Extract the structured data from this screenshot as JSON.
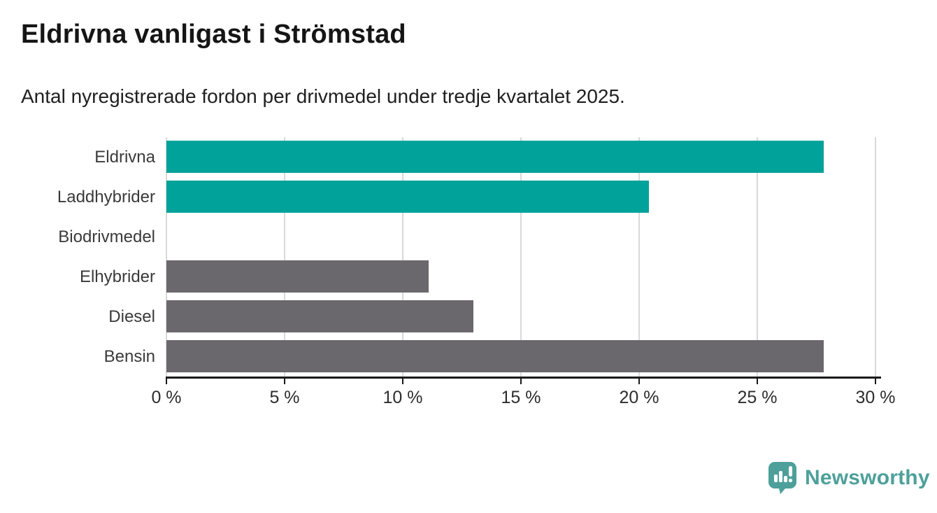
{
  "header": {
    "title": "Eldrivna vanligast i Strömstad",
    "subtitle": "Antal nyregistrerade fordon per drivmedel under tredje kvartalet 2025."
  },
  "chart_data": {
    "type": "bar",
    "orientation": "horizontal",
    "title": "Eldrivna vanligast i Strömstad",
    "subtitle": "Antal nyregistrerade fordon per drivmedel under tredje kvartalet 2025.",
    "categories": [
      "Eldrivna",
      "Laddhybrider",
      "Biodrivmedel",
      "Elhybrider",
      "Diesel",
      "Bensin"
    ],
    "values": [
      27.8,
      20.4,
      0,
      11.1,
      13.0,
      27.8
    ],
    "unit": "%",
    "bar_colors": [
      "#00a29a",
      "#00a29a",
      "#6b686d",
      "#6b686d",
      "#6b686d",
      "#6b686d"
    ],
    "xlabel": "",
    "ylabel": "",
    "xlim": [
      0,
      30.2
    ],
    "x_ticks": [
      0,
      5,
      10,
      15,
      20,
      25,
      30
    ],
    "x_tick_labels": [
      "0 %",
      "5 %",
      "10 %",
      "15 %",
      "20 %",
      "25 %",
      "30 %"
    ],
    "grid": true,
    "legend": false
  },
  "colors": {
    "highlight_teal": "#00a29a",
    "neutral_gray": "#6b686d",
    "gridline": "#d9d9d9",
    "axis": "#1a1a1a",
    "label_text": "#3a3a3a",
    "brand_teal": "#4da09a"
  },
  "footer": {
    "brand_name": "Newsworthy",
    "logo_icon": "newsworthy-speech-bubble-bar-chart-icon"
  }
}
